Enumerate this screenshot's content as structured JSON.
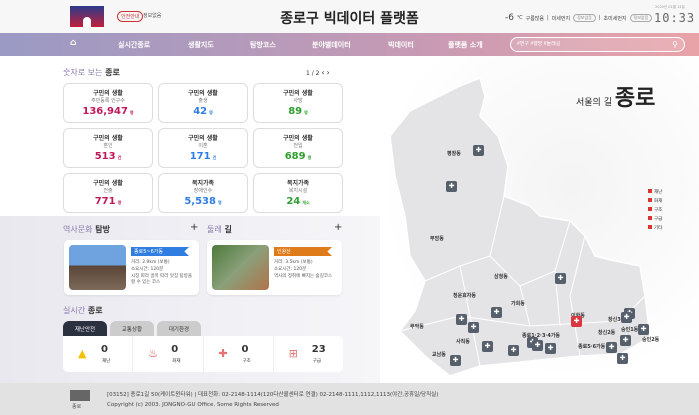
{
  "header": {
    "safety_badge": "안전안내",
    "safety_text": "정보없음",
    "title": "종로구 빅데이터 플랫폼",
    "temp": "-6",
    "temp_unit": "℃",
    "sky": "구름많음",
    "fine_dust_label": "미세먼지",
    "fine_dust_value": "정보없음",
    "ultra_dust_label": "초미세먼지",
    "ultra_dust_value": "정보없음",
    "date": "2020년 01월 14일",
    "clock": "10:33"
  },
  "nav": {
    "items": [
      "실시간종로",
      "생활지도",
      "탐방코스",
      "분야별데이터",
      "빅데이터",
      "플랫폼 소개"
    ],
    "search_placeholder": "#변구 #행방 #둘레길"
  },
  "stats": {
    "title_light": "숫자로 보는",
    "title_bold": "종로",
    "pager": "1 / 2",
    "cards": [
      {
        "title": "구민의 생활",
        "sub": "주민등록 인구수",
        "value": "136,947",
        "unit": "명",
        "color": "#c2185b"
      },
      {
        "title": "구민의 생활",
        "sub": "출생",
        "value": "42",
        "unit": "명",
        "color": "#2f7de1"
      },
      {
        "title": "구민의 생활",
        "sub": "사망",
        "value": "89",
        "unit": "명",
        "color": "#2e9e2e"
      },
      {
        "title": "구민의 생활",
        "sub": "혼인",
        "value": "513",
        "unit": "건",
        "color": "#c2185b"
      },
      {
        "title": "구민의 생활",
        "sub": "이혼",
        "value": "171",
        "unit": "건",
        "color": "#2f7de1"
      },
      {
        "title": "구민의 생활",
        "sub": "전입",
        "value": "689",
        "unit": "명",
        "color": "#2e9e2e"
      },
      {
        "title": "구민의 생활",
        "sub": "전출",
        "value": "771",
        "unit": "명",
        "color": "#c2185b"
      },
      {
        "title": "복지가족",
        "sub": "장애인수",
        "value": "5,538",
        "unit": "명",
        "color": "#2f7de1"
      },
      {
        "title": "복지가족",
        "sub": "복지시설",
        "value": "24",
        "unit": "개소",
        "color": "#2e9e2e"
      }
    ]
  },
  "history": {
    "title_light": "역사문화",
    "title_bold": "탐방",
    "tag": "종로5~6가동",
    "distance": "거리: 2.9km (보통)",
    "time": "소요시간: 120분",
    "desc": "시장 따라 골목 따라 맛집 탐방을 할 수 있는 코스",
    "tag_color": "#2f7de1"
  },
  "trail": {
    "title_light": "둘레",
    "title_bold": "길",
    "tag": "인왕산",
    "distance": "거리: 3.5km (보통)",
    "time": "소요시간: 120분",
    "desc": "역사의 정취에 빠지는 숲길코스",
    "tag_color": "#e07b1a"
  },
  "realtime": {
    "title_light": "실시간",
    "title_bold": "종로",
    "tabs": [
      "재난안전",
      "교통상황",
      "대기환경"
    ],
    "items": [
      {
        "value": "0",
        "label": "재난",
        "icon": "warning-icon"
      },
      {
        "value": "0",
        "label": "화재",
        "icon": "fire-icon"
      },
      {
        "value": "0",
        "label": "구조",
        "icon": "shield-icon"
      },
      {
        "value": "23",
        "label": "구급",
        "icon": "first-aid-icon"
      }
    ]
  },
  "map": {
    "brand_small": "서울의 길",
    "brand_big": "종로",
    "legend": [
      "재난",
      "화재",
      "구조",
      "구급",
      "기타"
    ],
    "labels": [
      "평창동",
      "부암동",
      "삼청동",
      "청운효자동",
      "가회동",
      "무악동",
      "사직동",
      "교남동",
      "종로1·2·3·4가동",
      "이화동",
      "창신3동",
      "창신2동",
      "숭인1동",
      "숭인2동",
      "종로5·6가동"
    ]
  },
  "footer": {
    "logo": "종로",
    "address": "[03152] 종로1길 50(케이트윈타워) | 대표전화: 02-2148-1114(120다산콜센터로 연결) 02-2148-1111,1112,1113(야간,공휴일/당직실)",
    "copyright": "Copyright (c) 2003. JONGNO-GU Office. Some Rights Reserved"
  }
}
